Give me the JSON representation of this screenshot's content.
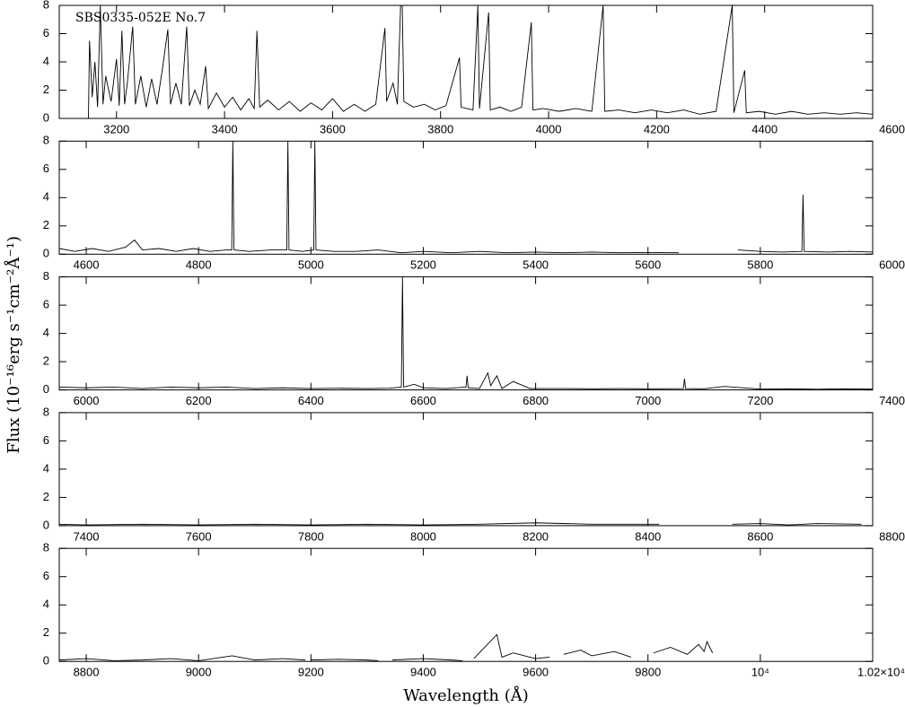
{
  "chart_data": [
    {
      "type": "line",
      "title": "SBS0335-052E No.7",
      "xlim": [
        3094,
        4600
      ],
      "ylim": [
        0,
        8
      ],
      "xticks": [
        3200,
        3400,
        3600,
        3800,
        4000,
        4200,
        4400,
        4600
      ],
      "yticks": [
        0,
        2,
        4,
        6,
        8
      ],
      "color": "#000000",
      "x": [
        3094,
        3148,
        3150,
        3155,
        3160,
        3165,
        3170,
        3175,
        3180,
        3190,
        3200,
        3205,
        3210,
        3215,
        3220,
        3230,
        3235,
        3245,
        3255,
        3265,
        3275,
        3285,
        3295,
        3300,
        3310,
        3320,
        3330,
        3335,
        3345,
        3355,
        3365,
        3370,
        3385,
        3400,
        3415,
        3430,
        3445,
        3455,
        3460,
        3465,
        3480,
        3500,
        3520,
        3540,
        3560,
        3580,
        3600,
        3620,
        3640,
        3660,
        3680,
        3697,
        3700,
        3712,
        3720,
        3726,
        3729,
        3732,
        3750,
        3770,
        3790,
        3810,
        3835,
        3838,
        3860,
        3869,
        3872,
        3889,
        3892,
        3910,
        3930,
        3950,
        3968,
        3971,
        3990,
        4020,
        4050,
        4080,
        4101,
        4104,
        4130,
        4160,
        4190,
        4220,
        4250,
        4280,
        4310,
        4340,
        4343,
        4363,
        4366,
        4390,
        4420,
        4450,
        4480,
        4510,
        4540,
        4570,
        4600
      ],
      "values": [
        0,
        0,
        5.5,
        1.5,
        4,
        0.8,
        8,
        1,
        3,
        1.2,
        4.2,
        0.9,
        6.2,
        1,
        2.5,
        6.5,
        1,
        3,
        0.8,
        2.8,
        1,
        3.5,
        6.3,
        1,
        2.5,
        1,
        6.5,
        0.9,
        2,
        1,
        3.7,
        0.7,
        1.8,
        0.8,
        1.5,
        0.6,
        1.4,
        0.7,
        6.2,
        0.8,
        1.3,
        0.6,
        1.2,
        0.5,
        1.1,
        0.6,
        1.4,
        0.5,
        1.0,
        0.5,
        1.0,
        6.4,
        1.2,
        2.5,
        1,
        8,
        8,
        1.2,
        0.8,
        1.0,
        0.6,
        0.9,
        4.3,
        0.8,
        0.6,
        8,
        0.7,
        7.5,
        0.6,
        0.8,
        0.5,
        0.8,
        6.8,
        0.6,
        0.7,
        0.5,
        0.7,
        0.5,
        8,
        0.5,
        0.6,
        0.4,
        0.6,
        0.4,
        0.6,
        0.3,
        0.5,
        8,
        0.4,
        3.4,
        0.4,
        0.5,
        0.3,
        0.5,
        0.3,
        0.4,
        0.3,
        0.4,
        0.3
      ]
    },
    {
      "type": "line",
      "xlim": [
        4552,
        6000
      ],
      "ylim": [
        0,
        8
      ],
      "xticks": [
        4600,
        4800,
        5000,
        5200,
        5400,
        5600,
        5800,
        6000
      ],
      "yticks": [
        0,
        2,
        4,
        6,
        8
      ],
      "color": "#000000",
      "x": [
        4552,
        4580,
        4610,
        4640,
        4670,
        4686,
        4700,
        4730,
        4760,
        4790,
        4820,
        4850,
        4859,
        4861,
        4863,
        4890,
        4930,
        4957,
        4959,
        4961,
        4985,
        5005,
        5007,
        5009,
        5040,
        5080,
        5120,
        5160,
        5200,
        5250,
        5300,
        5350,
        5400,
        5450,
        5500,
        5550,
        5600,
        5655,
        5700,
        5760,
        5800,
        5840,
        5874,
        5876,
        5878,
        5920,
        5960,
        6000
      ],
      "values": [
        0.4,
        0.2,
        0.4,
        0.2,
        0.5,
        1.0,
        0.3,
        0.4,
        0.2,
        0.4,
        0.2,
        0.3,
        0.3,
        8,
        0.3,
        0.2,
        0.3,
        0.3,
        8,
        0.3,
        0.2,
        0.3,
        8,
        0.3,
        0.2,
        0.2,
        0.3,
        0.1,
        0.2,
        0.1,
        0.2,
        0.1,
        0.15,
        0.1,
        0.15,
        0.1,
        0.12,
        0.1,
        null,
        0.3,
        0.2,
        0.15,
        0.2,
        4.2,
        0.2,
        0.15,
        0.2,
        0.15
      ]
    },
    {
      "type": "line",
      "xlim": [
        5952,
        7400
      ],
      "ylim": [
        0,
        8
      ],
      "ylabel": "Flux (10⁻¹⁶erg s⁻¹cm⁻²Å⁻¹)",
      "xticks": [
        6000,
        6200,
        6400,
        6600,
        6800,
        7000,
        7200,
        7400
      ],
      "yticks": [
        0,
        2,
        4,
        6,
        8
      ],
      "color": "#000000",
      "x": [
        5952,
        6000,
        6050,
        6100,
        6150,
        6200,
        6250,
        6300,
        6350,
        6400,
        6450,
        6500,
        6540,
        6561,
        6563,
        6565,
        6584,
        6600,
        6640,
        6676,
        6678,
        6680,
        6700,
        6715,
        6720,
        6731,
        6740,
        6760,
        6790,
        6850,
        6900,
        6950,
        7000,
        7063,
        7065,
        7067,
        7100,
        7136,
        7200,
        7250,
        7300,
        7350,
        7400
      ],
      "values": [
        0.2,
        0.15,
        0.2,
        0.1,
        0.2,
        0.15,
        0.2,
        0.1,
        0.15,
        0.1,
        0.12,
        0.1,
        0.12,
        0.2,
        8,
        0.2,
        0.4,
        0.15,
        0.1,
        0.2,
        1.0,
        0.15,
        0.1,
        1.2,
        0.3,
        1.0,
        0.1,
        0.6,
        0.1,
        0.1,
        0.08,
        0.1,
        0.08,
        0.1,
        0.8,
        0.1,
        0.08,
        0.25,
        0.06,
        0.08,
        0.05,
        0.08,
        0.06
      ]
    },
    {
      "type": "line",
      "xlim": [
        7352,
        8800
      ],
      "ylim": [
        0,
        8
      ],
      "xticks": [
        7400,
        7600,
        7800,
        8000,
        8200,
        8400,
        8600,
        8800
      ],
      "yticks": [
        0,
        2,
        4,
        6,
        8
      ],
      "color": "#000000",
      "x": [
        7352,
        7400,
        7500,
        7600,
        7700,
        7800,
        7900,
        8000,
        8100,
        8200,
        8300,
        8420,
        8480,
        8550,
        8600,
        8650,
        8700,
        8780
      ],
      "values": [
        0.1,
        0.05,
        0.1,
        0.05,
        0.1,
        0.05,
        0.1,
        0.05,
        0.1,
        0.2,
        0.1,
        0.1,
        null,
        0.1,
        0.15,
        0.05,
        0.15,
        0.1
      ]
    },
    {
      "type": "line",
      "xlim": [
        8752,
        10200
      ],
      "ylim": [
        0,
        8
      ],
      "xlabel": "Wavelength (Å)",
      "xticks": [
        8800,
        9000,
        9200,
        9400,
        9600,
        9800,
        {
          "value": 10000,
          "label": "10⁴"
        },
        {
          "value": 10200,
          "label": "1.02×10⁴"
        }
      ],
      "yticks": [
        0,
        2,
        4,
        6,
        8
      ],
      "color": "#000000",
      "x": [
        8752,
        8800,
        8850,
        8900,
        8950,
        9000,
        9060,
        9100,
        9150,
        9190,
        9195,
        9200,
        9250,
        9300,
        9320,
        9330,
        9345,
        9400,
        9450,
        9470,
        9480,
        9490,
        9531,
        9540,
        9560,
        9600,
        9625,
        9640,
        9650,
        9680,
        9700,
        9740,
        9770,
        9790,
        9810,
        9840,
        9870,
        9890,
        9900,
        9905,
        9915
      ],
      "values": [
        0.1,
        0.2,
        0.05,
        0.1,
        0.2,
        0.05,
        0.4,
        0.1,
        0.2,
        0.1,
        null,
        0.1,
        0.15,
        0.1,
        0.05,
        null,
        0.1,
        0.2,
        0.1,
        0.05,
        null,
        0.2,
        1.9,
        0.3,
        0.6,
        0.2,
        0.3,
        null,
        0.5,
        0.8,
        0.4,
        0.7,
        0.3,
        null,
        0.6,
        1.0,
        0.5,
        1.2,
        0.7,
        1.4,
        0.6
      ]
    }
  ]
}
